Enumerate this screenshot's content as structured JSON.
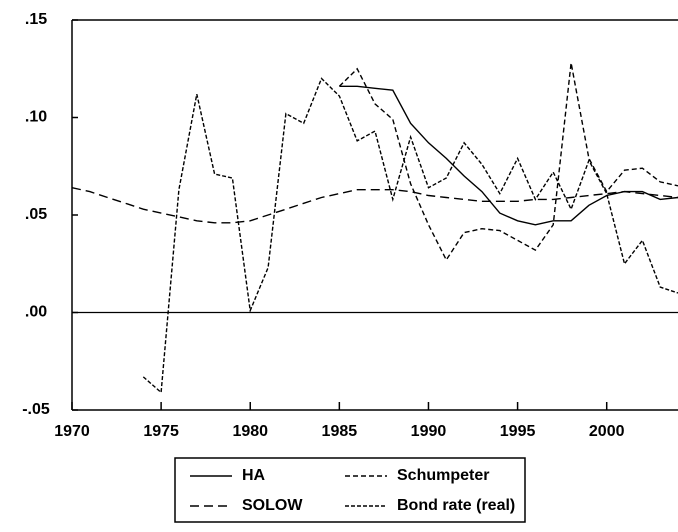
{
  "chart_data": {
    "type": "line",
    "x": [
      1970,
      1971,
      1972,
      1973,
      1974,
      1975,
      1976,
      1977,
      1978,
      1979,
      1980,
      1981,
      1982,
      1983,
      1984,
      1985,
      1986,
      1987,
      1988,
      1989,
      1990,
      1991,
      1992,
      1993,
      1994,
      1995,
      1996,
      1997,
      1998,
      1999,
      2000,
      2001,
      2002,
      2003,
      2004
    ],
    "series": [
      {
        "name": "HA",
        "color": "#000000",
        "dash": "none",
        "values": [
          null,
          null,
          null,
          null,
          null,
          null,
          null,
          null,
          null,
          null,
          null,
          null,
          null,
          null,
          null,
          0.116,
          0.116,
          0.115,
          0.114,
          0.097,
          0.087,
          0.079,
          0.07,
          0.062,
          0.051,
          0.047,
          0.045,
          0.047,
          0.047,
          0.055,
          0.06,
          0.062,
          0.062,
          0.058,
          0.059
        ]
      },
      {
        "name": "SOLOW",
        "color": "#000000",
        "dash": "9,5",
        "values": [
          0.064,
          0.062,
          0.059,
          0.056,
          0.053,
          0.051,
          0.049,
          0.047,
          0.046,
          0.046,
          0.047,
          0.05,
          0.053,
          0.056,
          0.059,
          0.061,
          0.063,
          0.063,
          0.063,
          0.062,
          0.06,
          0.059,
          0.058,
          0.057,
          0.057,
          0.057,
          0.058,
          0.058,
          0.059,
          0.06,
          0.061,
          0.062,
          0.061,
          0.06,
          0.059
        ]
      },
      {
        "name": "Schumpeter",
        "color": "#000000",
        "dash": "5,3",
        "values": [
          null,
          null,
          null,
          null,
          null,
          null,
          null,
          null,
          null,
          null,
          null,
          null,
          null,
          null,
          null,
          0.116,
          0.125,
          0.107,
          0.099,
          0.066,
          0.045,
          0.027,
          0.041,
          0.043,
          0.042,
          0.037,
          0.032,
          0.045,
          0.128,
          0.079,
          0.062,
          0.073,
          0.074,
          0.067,
          0.065
        ]
      },
      {
        "name": "Bond rate (real)",
        "color": "#000000",
        "dash": "4,2",
        "values": [
          null,
          null,
          null,
          null,
          -0.033,
          -0.041,
          0.063,
          0.112,
          0.071,
          0.069,
          0.001,
          0.023,
          0.102,
          0.097,
          0.12,
          0.111,
          0.088,
          0.093,
          0.058,
          0.09,
          0.064,
          0.069,
          0.087,
          0.076,
          0.061,
          0.079,
          0.058,
          0.072,
          0.053,
          0.078,
          0.061,
          0.025,
          0.037,
          0.013,
          0.01
        ]
      }
    ],
    "xlim": [
      1970,
      2004
    ],
    "xticks": [
      1970,
      1975,
      1980,
      1985,
      1990,
      1995,
      2000
    ],
    "ylim": [
      -0.05,
      0.15
    ],
    "yticks": [
      {
        "value": -0.05,
        "label": "-.05"
      },
      {
        "value": 0,
        "label": ".00"
      },
      {
        "value": 0.05,
        "label": ".05"
      },
      {
        "value": 0.1,
        "label": ".10"
      },
      {
        "value": 0.15,
        "label": ".15"
      }
    ]
  }
}
